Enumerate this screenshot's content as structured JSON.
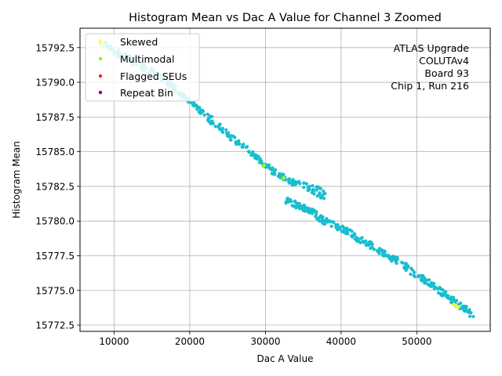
{
  "chart_data": {
    "type": "scatter",
    "title": "Histogram Mean vs Dac A Value for Channel 3 Zoomed",
    "xlabel": "Dac A Value",
    "ylabel": "Histogram Mean",
    "xlim": [
      5500,
      59700
    ],
    "ylim": [
      15772.05,
      15793.9
    ],
    "grid": true,
    "legend_position": "top-left",
    "x_ticks": [
      10000,
      20000,
      30000,
      40000,
      50000
    ],
    "x_tick_labels": [
      "10000",
      "20000",
      "30000",
      "40000",
      "50000"
    ],
    "y_ticks": [
      15772.5,
      15775.0,
      15777.5,
      15780.0,
      15782.5,
      15785.0,
      15787.5,
      15790.0,
      15792.5
    ],
    "y_tick_labels": [
      "15772.5",
      "15775.0",
      "15777.5",
      "15780.0",
      "15782.5",
      "15785.0",
      "15787.5",
      "15790.0",
      "15792.5"
    ],
    "annotation": [
      "ATLAS Upgrade",
      "COLUTAv4",
      "Board 93",
      "Chip 1, Run 216"
    ],
    "legend": [
      "Skewed",
      "Multimodal",
      "Flagged SEUs",
      "Repeat Bin"
    ],
    "colors": {
      "main": "#17becf",
      "skewed": "#ffff33",
      "multimodal": "#7fff00",
      "flagged_seus": "#ff2020",
      "repeat_bin": "#800080",
      "grid": "#b0b0b0"
    },
    "series": [
      {
        "name": "Data",
        "color": "#17becf",
        "segments": [
          {
            "x0": 8200,
            "y0": 15792.9,
            "x1": 11000,
            "y1": 15791.9,
            "n": 40,
            "spread": 0.25
          },
          {
            "x0": 11000,
            "y0": 15791.9,
            "x1": 15000,
            "y1": 15790.8,
            "n": 40,
            "spread": 0.3
          },
          {
            "x0": 15000,
            "y0": 15790.8,
            "x1": 18000,
            "y1": 15789.6,
            "n": 35,
            "spread": 0.25
          },
          {
            "x0": 18000,
            "y0": 15789.6,
            "x1": 20500,
            "y1": 15788.4,
            "n": 25,
            "spread": 0.2
          },
          {
            "x0": 20500,
            "y0": 15788.4,
            "x1": 23000,
            "y1": 15787.2,
            "n": 25,
            "spread": 0.25
          },
          {
            "x0": 23000,
            "y0": 15787.2,
            "x1": 26000,
            "y1": 15785.8,
            "n": 30,
            "spread": 0.25
          },
          {
            "x0": 26000,
            "y0": 15785.8,
            "x1": 29000,
            "y1": 15784.5,
            "n": 30,
            "spread": 0.2
          },
          {
            "x0": 29000,
            "y0": 15784.5,
            "x1": 31000,
            "y1": 15783.6,
            "n": 22,
            "spread": 0.2
          },
          {
            "x0": 31000,
            "y0": 15783.6,
            "x1": 33000,
            "y1": 15783.0,
            "n": 20,
            "spread": 0.2
          },
          {
            "x0": 33000,
            "y0": 15782.9,
            "x1": 35500,
            "y1": 15782.5,
            "n": 22,
            "spread": 0.2
          },
          {
            "x0": 35500,
            "y0": 15782.5,
            "x1": 37800,
            "y1": 15781.9,
            "n": 28,
            "spread": 0.35
          },
          {
            "x0": 32700,
            "y0": 15781.5,
            "x1": 35500,
            "y1": 15780.9,
            "n": 40,
            "spread": 0.25
          },
          {
            "x0": 35500,
            "y0": 15780.9,
            "x1": 37500,
            "y1": 15780.1,
            "n": 25,
            "spread": 0.25
          },
          {
            "x0": 37500,
            "y0": 15780.1,
            "x1": 40000,
            "y1": 15779.5,
            "n": 30,
            "spread": 0.25
          },
          {
            "x0": 40000,
            "y0": 15779.5,
            "x1": 44000,
            "y1": 15778.2,
            "n": 45,
            "spread": 0.25
          },
          {
            "x0": 44000,
            "y0": 15778.2,
            "x1": 48000,
            "y1": 15776.9,
            "n": 45,
            "spread": 0.25
          },
          {
            "x0": 48000,
            "y0": 15776.9,
            "x1": 52000,
            "y1": 15775.4,
            "n": 45,
            "spread": 0.25
          },
          {
            "x0": 52000,
            "y0": 15775.4,
            "x1": 55000,
            "y1": 15774.2,
            "n": 35,
            "spread": 0.25
          },
          {
            "x0": 55000,
            "y0": 15774.2,
            "x1": 57500,
            "y1": 15773.2,
            "n": 30,
            "spread": 0.25
          }
        ]
      },
      {
        "name": "Skewed",
        "color": "#ffff33",
        "points": [
          [
            8400,
            15792.9
          ],
          [
            8600,
            15792.7
          ],
          [
            29800,
            15784.0
          ],
          [
            32400,
            15783.1
          ],
          [
            54900,
            15774.0
          ],
          [
            55200,
            15773.9
          ],
          [
            55500,
            15773.8
          ]
        ]
      },
      {
        "name": "Multimodal",
        "color": "#7fff00",
        "points": [
          [
            29700,
            15783.95
          ],
          [
            32300,
            15783.05
          ]
        ]
      }
    ]
  }
}
